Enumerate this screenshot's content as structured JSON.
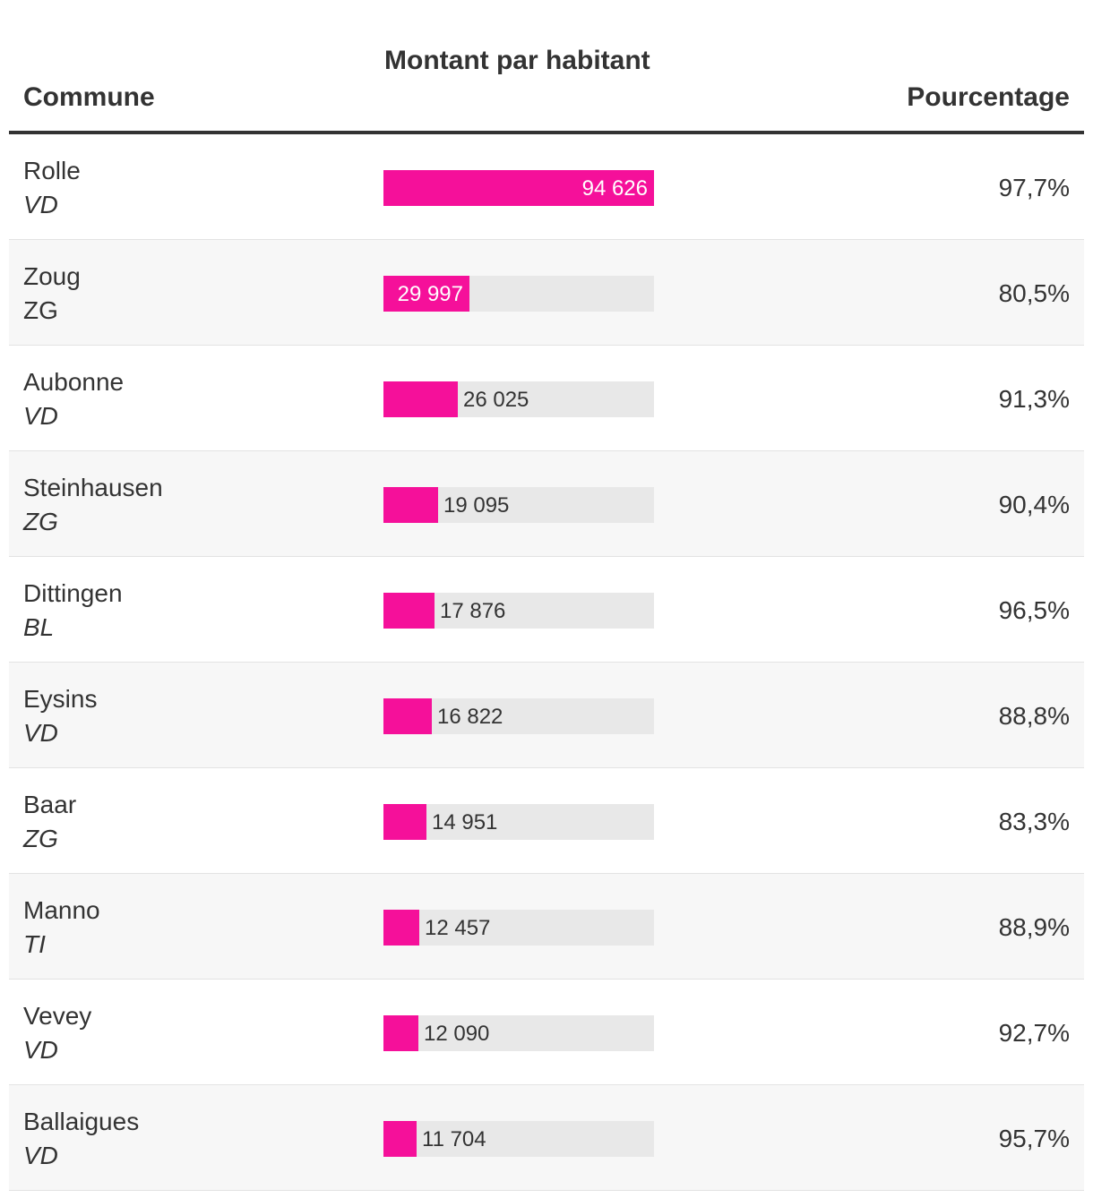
{
  "headers": {
    "commune": "Commune",
    "montant": "Montant par habitant",
    "pourcentage": "Pourcentage"
  },
  "colors": {
    "bar": "#f5109a",
    "track": "#e8e8e8",
    "alt_row": "#f7f7f7"
  },
  "chart_data": {
    "type": "bar",
    "title": "",
    "xlabel": "Montant par habitant",
    "ylabel": "Commune",
    "xlim": [
      0,
      94626
    ],
    "categories": [
      "Rolle",
      "Zoug",
      "Aubonne",
      "Steinhausen",
      "Dittingen",
      "Eysins",
      "Baar",
      "Manno",
      "Vevey",
      "Ballaigues"
    ],
    "rows": [
      {
        "commune": "Rolle",
        "canton": "VD",
        "canton_italic": true,
        "value": 94626,
        "value_label": "94 626",
        "pourcentage": "97,7%"
      },
      {
        "commune": "Zoug",
        "canton": "ZG",
        "canton_italic": false,
        "value": 29997,
        "value_label": "29 997",
        "pourcentage": "80,5%"
      },
      {
        "commune": "Aubonne",
        "canton": "VD",
        "canton_italic": true,
        "value": 26025,
        "value_label": "26 025",
        "pourcentage": "91,3%"
      },
      {
        "commune": "Steinhausen",
        "canton": "ZG",
        "canton_italic": true,
        "value": 19095,
        "value_label": "19 095",
        "pourcentage": "90,4%"
      },
      {
        "commune": "Dittingen",
        "canton": "BL",
        "canton_italic": true,
        "value": 17876,
        "value_label": "17 876",
        "pourcentage": "96,5%"
      },
      {
        "commune": "Eysins",
        "canton": "VD",
        "canton_italic": true,
        "value": 16822,
        "value_label": "16 822",
        "pourcentage": "88,8%"
      },
      {
        "commune": "Baar",
        "canton": "ZG",
        "canton_italic": true,
        "value": 14951,
        "value_label": "14 951",
        "pourcentage": "83,3%"
      },
      {
        "commune": "Manno",
        "canton": "TI",
        "canton_italic": true,
        "value": 12457,
        "value_label": "12 457",
        "pourcentage": "88,9%"
      },
      {
        "commune": "Vevey",
        "canton": "VD",
        "canton_italic": true,
        "value": 12090,
        "value_label": "12 090",
        "pourcentage": "92,7%"
      },
      {
        "commune": "Ballaigues",
        "canton": "VD",
        "canton_italic": true,
        "value": 11704,
        "value_label": "11 704",
        "pourcentage": "95,7%"
      }
    ]
  }
}
